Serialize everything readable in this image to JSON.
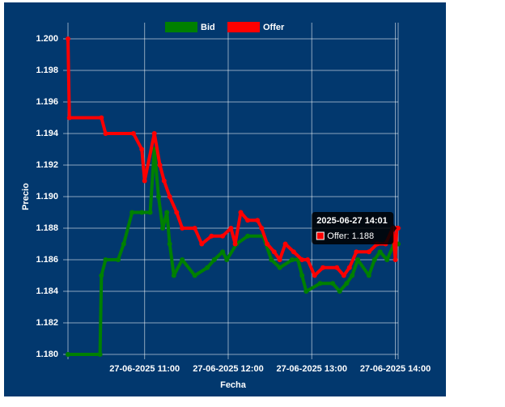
{
  "chart_data": {
    "type": "line",
    "xlabel": "Fecha",
    "ylabel": "Precio",
    "xlim": [
      "2025-06-27 10:05",
      "2025-06-27 14:02"
    ],
    "xticks": [
      {
        "value": "2025-06-27 11:00",
        "label": "27-06-2025 11:00"
      },
      {
        "value": "2025-06-27 12:00",
        "label": "27-06-2025 12:00"
      },
      {
        "value": "2025-06-27 13:00",
        "label": "27-06-2025 13:00"
      },
      {
        "value": "2025-06-27 14:00",
        "label": "27-06-2025 14:00"
      }
    ],
    "ylim": [
      1.18,
      1.2
    ],
    "yticks": [
      {
        "value": 1.18,
        "label": "1.180"
      },
      {
        "value": 1.182,
        "label": "1.182"
      },
      {
        "value": 1.184,
        "label": "1.184"
      },
      {
        "value": 1.186,
        "label": "1.186"
      },
      {
        "value": 1.188,
        "label": "1.188"
      },
      {
        "value": 1.19,
        "label": "1.190"
      },
      {
        "value": 1.192,
        "label": "1.192"
      },
      {
        "value": 1.194,
        "label": "1.194"
      },
      {
        "value": 1.196,
        "label": "1.196"
      },
      {
        "value": 1.198,
        "label": "1.198"
      },
      {
        "value": 1.2,
        "label": "1.200"
      }
    ],
    "grid": true,
    "legend": "top",
    "series": [
      {
        "name": "Bid",
        "color": "#008000",
        "x": [
          "2025-06-27 10:05",
          "2025-06-27 10:28",
          "2025-06-27 10:29",
          "2025-06-27 10:32",
          "2025-06-27 10:41",
          "2025-06-27 10:45",
          "2025-06-27 10:51",
          "2025-06-27 10:58",
          "2025-06-27 11:04",
          "2025-06-27 11:07",
          "2025-06-27 11:10",
          "2025-06-27 11:13",
          "2025-06-27 11:16",
          "2025-06-27 11:18",
          "2025-06-27 11:21",
          "2025-06-27 11:27",
          "2025-06-27 11:36",
          "2025-06-27 11:45",
          "2025-06-27 11:50",
          "2025-06-27 11:56",
          "2025-06-27 11:59",
          "2025-06-27 12:06",
          "2025-06-27 12:14",
          "2025-06-27 12:25",
          "2025-06-27 12:31",
          "2025-06-27 12:37",
          "2025-06-27 12:46",
          "2025-06-27 12:50",
          "2025-06-27 12:53",
          "2025-06-27 12:56",
          "2025-06-27 13:06",
          "2025-06-27 13:15",
          "2025-06-27 13:20",
          "2025-06-27 13:25",
          "2025-06-27 13:29",
          "2025-06-27 13:33",
          "2025-06-27 13:41",
          "2025-06-27 13:45",
          "2025-06-27 13:49",
          "2025-06-27 13:54",
          "2025-06-27 13:59",
          "2025-06-27 14:02"
        ],
        "values": [
          1.18,
          1.18,
          1.185,
          1.186,
          1.186,
          1.187,
          1.189,
          1.189,
          1.189,
          1.193,
          1.19,
          1.188,
          1.189,
          1.187,
          1.185,
          1.186,
          1.185,
          1.1855,
          1.186,
          1.1865,
          1.186,
          1.187,
          1.1875,
          1.1875,
          1.186,
          1.1855,
          1.186,
          1.186,
          1.185,
          1.184,
          1.1845,
          1.1845,
          1.184,
          1.1845,
          1.185,
          1.186,
          1.185,
          1.186,
          1.1865,
          1.186,
          1.187,
          1.187
        ]
      },
      {
        "name": "Offer",
        "color": "#ff0000",
        "x": [
          "2025-06-27 10:05",
          "2025-06-27 10:06",
          "2025-06-27 10:29",
          "2025-06-27 10:32",
          "2025-06-27 10:52",
          "2025-06-27 10:58",
          "2025-06-27 11:00",
          "2025-06-27 11:07",
          "2025-06-27 11:11",
          "2025-06-27 11:14",
          "2025-06-27 11:18",
          "2025-06-27 11:23",
          "2025-06-27 11:27",
          "2025-06-27 11:36",
          "2025-06-27 11:41",
          "2025-06-27 11:48",
          "2025-06-27 11:56",
          "2025-06-27 12:02",
          "2025-06-27 12:05",
          "2025-06-27 12:09",
          "2025-06-27 12:14",
          "2025-06-27 12:21",
          "2025-06-27 12:24",
          "2025-06-27 12:28",
          "2025-06-27 12:33",
          "2025-06-27 12:37",
          "2025-06-27 12:41",
          "2025-06-27 12:47",
          "2025-06-27 12:53",
          "2025-06-27 12:57",
          "2025-06-27 13:02",
          "2025-06-27 13:08",
          "2025-06-27 13:18",
          "2025-06-27 13:23",
          "2025-06-27 13:27",
          "2025-06-27 13:32",
          "2025-06-27 13:41",
          "2025-06-27 13:47",
          "2025-06-27 13:53",
          "2025-06-27 13:58",
          "2025-06-27 14:00",
          "2025-06-27 14:01",
          "2025-06-27 14:02"
        ],
        "values": [
          1.2,
          1.195,
          1.195,
          1.194,
          1.194,
          1.193,
          1.191,
          1.194,
          1.192,
          1.191,
          1.19,
          1.189,
          1.188,
          1.188,
          1.187,
          1.1875,
          1.1875,
          1.188,
          1.187,
          1.189,
          1.1885,
          1.1885,
          1.188,
          1.187,
          1.1865,
          1.186,
          1.187,
          1.1865,
          1.186,
          1.186,
          1.185,
          1.1855,
          1.1855,
          1.185,
          1.1855,
          1.1865,
          1.1865,
          1.187,
          1.187,
          1.188,
          1.186,
          1.188,
          1.188
        ]
      }
    ],
    "tooltip": {
      "title": "2025-06-27 14:01",
      "label": "Offer: 1.188",
      "series": 1,
      "index": 41
    }
  }
}
